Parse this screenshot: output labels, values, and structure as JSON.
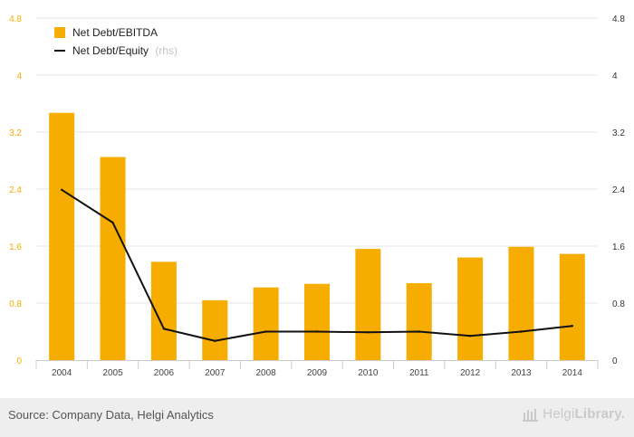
{
  "chart_data": {
    "type": "bar",
    "categories": [
      "2004",
      "2005",
      "2006",
      "2007",
      "2008",
      "2009",
      "2010",
      "2011",
      "2012",
      "2013",
      "2014"
    ],
    "series": [
      {
        "name": "Net Debt/EBITDA",
        "kind": "bar",
        "axis": "left",
        "values": [
          3.47,
          2.85,
          1.38,
          0.84,
          1.02,
          1.07,
          1.56,
          1.08,
          1.44,
          1.59,
          1.49
        ]
      },
      {
        "name": "Net Debt/Equity",
        "kind": "line",
        "axis": "right",
        "values": [
          2.39,
          1.93,
          0.44,
          0.27,
          0.4,
          0.4,
          0.39,
          0.4,
          0.34,
          0.4,
          0.48
        ]
      }
    ],
    "left_axis": {
      "ticks": [
        "0",
        "0.8",
        "1.6",
        "2.4",
        "3.2",
        "4",
        "4.8"
      ],
      "range": [
        0,
        4.8
      ]
    },
    "right_axis": {
      "ticks": [
        "0",
        "0.8",
        "1.6",
        "2.4",
        "3.2",
        "4",
        "4.8"
      ],
      "range": [
        0,
        4.8
      ]
    },
    "legend": [
      {
        "label": "Net Debt/EBITDA",
        "suffix": ""
      },
      {
        "label": "Net Debt/Equity",
        "suffix": "(rhs)"
      }
    ],
    "legend_position": "top-left",
    "grid": true
  },
  "colors": {
    "bar": "#f7ac00",
    "line": "#111111",
    "left_tick": "#f7ac00",
    "right_tick": "#333333",
    "grid": "#e6e6e6"
  },
  "footer": {
    "source": "Source: Company Data, Helgi Analytics",
    "brand_part1": "Helgi",
    "brand_part2": "Library."
  }
}
